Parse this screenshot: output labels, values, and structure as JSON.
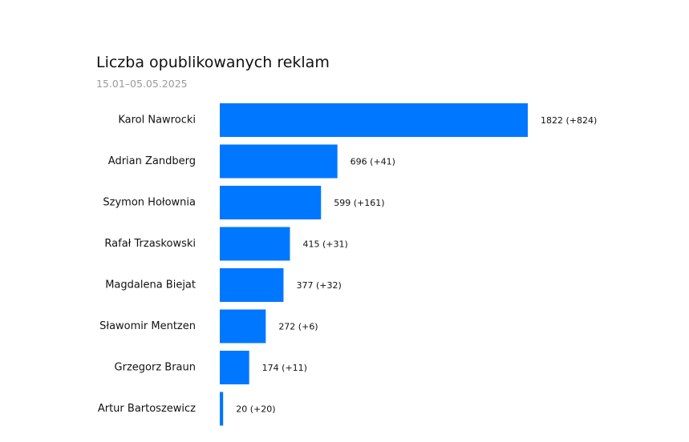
{
  "chart_data": {
    "type": "bar",
    "orientation": "horizontal",
    "title": "Liczba opublikowanych reklam",
    "subtitle": "15.01–05.05.2025",
    "categories": [
      "Karol Nawrocki",
      "Adrian Zandberg",
      "Szymon Hołownia",
      "Rafał Trzaskowski",
      "Magdalena Biejat",
      "Sławomir Mentzen",
      "Grzegorz Braun",
      "Artur Bartoszewicz"
    ],
    "values": [
      1822,
      696,
      599,
      415,
      377,
      272,
      174,
      20
    ],
    "value_labels": [
      "1822 (+824)",
      "696 (+41)",
      "599 (+161)",
      "415 (+31)",
      "377 (+32)",
      "272 (+6)",
      "174 (+11)",
      "20 (+20)"
    ],
    "bar_color": "#0077ff",
    "grid": false,
    "legend": "none",
    "xlim": [
      0,
      1822
    ]
  }
}
